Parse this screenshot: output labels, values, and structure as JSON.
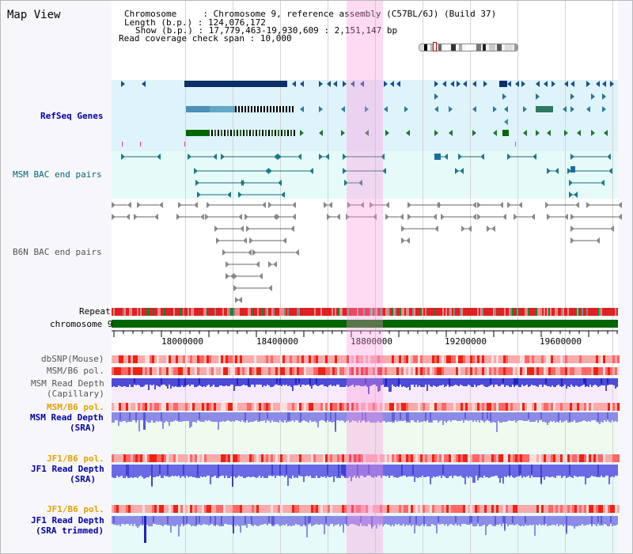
{
  "view": {
    "title": "Map View",
    "info": {
      "chromosome_label": "Chromosome",
      "chromosome_value": "Chromosome 9, reference assembly (C57BL/6J) (Build 37)",
      "length_label": "Length (b.p.)",
      "length_value": "124,076,172",
      "show_label": "Show (b.p.)",
      "show_value": "17,779,463-19,930,609 : 2,151,147 bp",
      "span_label": "Read coverage check span",
      "span_value": "10,000"
    }
  },
  "tracks": {
    "refseq_genes": {
      "label": "RefSeq Genes",
      "color": "#0000aa"
    },
    "msm_bac": {
      "label": "MSM BAC end pairs",
      "color": "#006677"
    },
    "b6n_bac": {
      "label": "B6N BAC end pairs",
      "color": "#555555"
    },
    "repeat": {
      "label": "Repeat",
      "color": "#000000"
    },
    "chromosome": {
      "label": "chromosome 9",
      "color": "#000000"
    },
    "dbsnp": {
      "label": "dbSNP(Mouse)",
      "color": "#555555"
    },
    "msm_b6_pol_1": {
      "label": "MSM/B6 pol.",
      "color": "#555555"
    },
    "msm_depth_cap_1": {
      "label": "MSM Read Depth",
      "color": "#555555"
    },
    "msm_depth_cap_2": {
      "label": "(Capillary)",
      "color": "#555555"
    },
    "msm_b6_pol_2": {
      "label": "MSM/B6 pol.",
      "color": "#e8a000"
    },
    "msm_depth_sra_1": {
      "label": "MSM Read Depth",
      "color": "#0000aa"
    },
    "msm_depth_sra_2": {
      "label": "(SRA)",
      "color": "#0000aa"
    },
    "jf1_b6_pol_1": {
      "label": "JF1/B6 pol.",
      "color": "#e8a000"
    },
    "jf1_depth_sra_1": {
      "label": "JF1 Read Depth",
      "color": "#0000aa"
    },
    "jf1_depth_sra_2": {
      "label": "(SRA)",
      "color": "#0000aa"
    },
    "jf1_b6_pol_2": {
      "label": "JF1/B6 pol.",
      "color": "#e8a000"
    },
    "jf1_depth_trim_1": {
      "label": "JF1 Read Depth",
      "color": "#0000aa"
    },
    "jf1_depth_trim_2": {
      "label": "(SRA trimmed)",
      "color": "#0000aa"
    }
  },
  "axis": {
    "ticks": [
      "18000000",
      "18400000",
      "18800000",
      "19200000",
      "19600000"
    ]
  }
}
